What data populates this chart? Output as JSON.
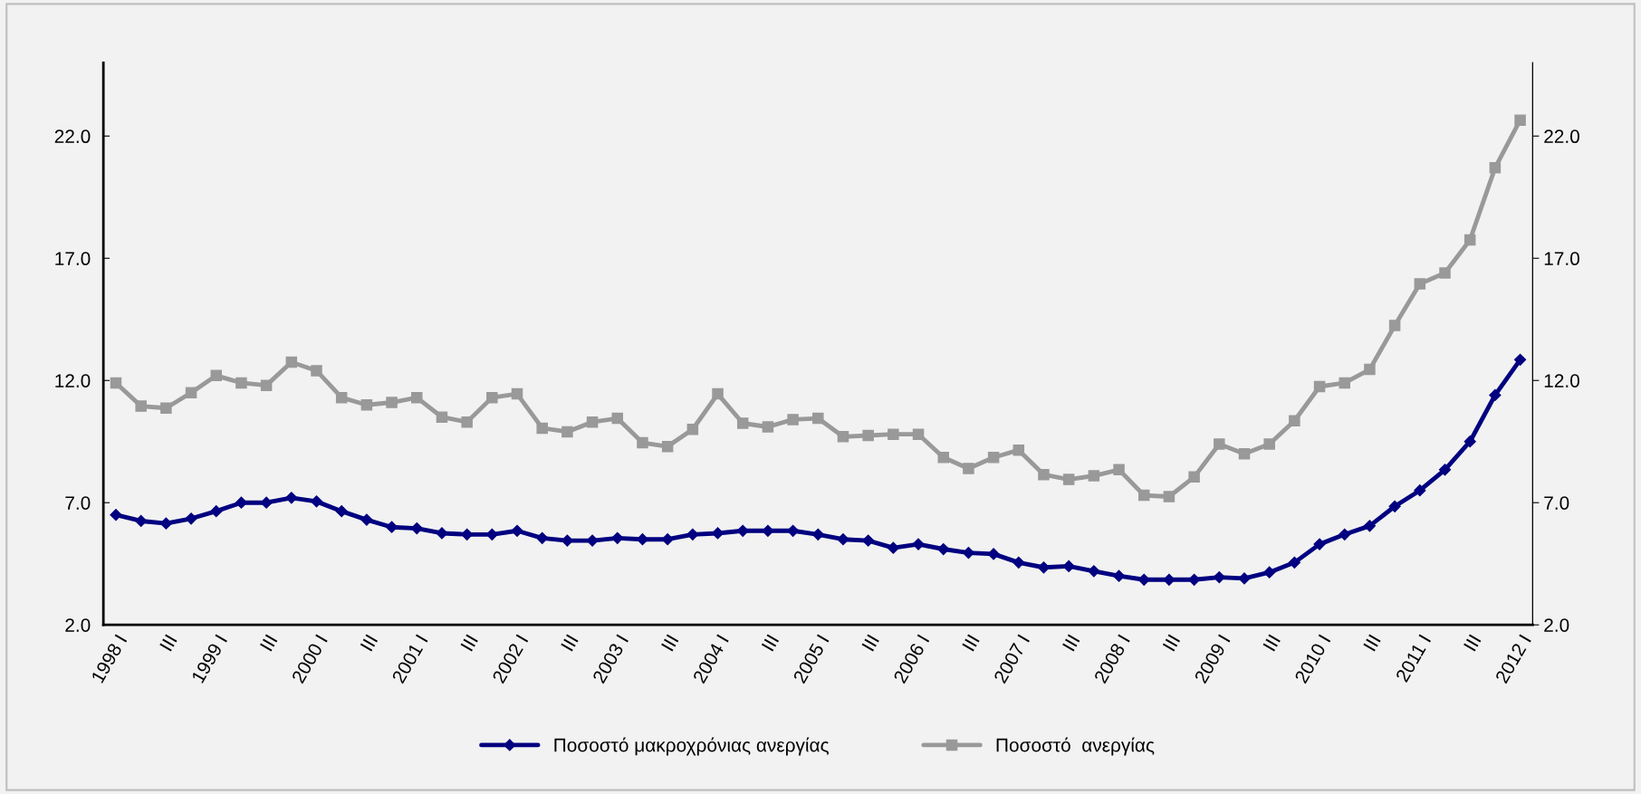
{
  "chart_data": {
    "type": "line",
    "categories": [
      "1998 I",
      null,
      "III",
      null,
      "1999 I",
      null,
      "III",
      null,
      "2000 I",
      null,
      "III",
      null,
      "2001 I",
      null,
      "III",
      null,
      "2002 I",
      null,
      "III",
      null,
      "2003 I",
      null,
      "III",
      null,
      "2004 I",
      null,
      "III",
      null,
      "2005 I",
      null,
      "III",
      null,
      "2006 I",
      null,
      "III",
      null,
      "2007 I",
      null,
      "III",
      null,
      "2008 I",
      null,
      "III",
      null,
      "2009 I",
      null,
      "III",
      null,
      "2010 I",
      null,
      "III",
      null,
      "2011 I",
      null,
      "III",
      null,
      "2012 I"
    ],
    "series": [
      {
        "name": "Ποσοστό μακροχρόνιας ανεργίας",
        "color": "#000080",
        "marker": "diamond",
        "values": [
          6.5,
          6.25,
          6.15,
          6.35,
          6.65,
          7.0,
          7.0,
          7.2,
          7.05,
          6.65,
          6.3,
          6.0,
          5.95,
          5.75,
          5.7,
          5.7,
          5.85,
          5.55,
          5.45,
          5.45,
          5.55,
          5.5,
          5.5,
          5.7,
          5.75,
          5.85,
          5.85,
          5.85,
          5.7,
          5.5,
          5.45,
          5.15,
          5.3,
          5.1,
          4.95,
          4.9,
          4.55,
          4.35,
          4.4,
          4.2,
          4.0,
          3.85,
          3.85,
          3.85,
          3.95,
          3.9,
          4.15,
          4.55,
          5.3,
          5.7,
          6.05,
          6.85,
          7.5,
          8.35,
          9.5,
          11.4,
          12.85
        ]
      },
      {
        "name": "Ποσοστό  ανεργίας",
        "color": "#999999",
        "marker": "square",
        "values": [
          11.9,
          10.95,
          10.87,
          11.5,
          12.2,
          11.9,
          11.8,
          12.75,
          12.4,
          11.3,
          11.0,
          11.1,
          11.3,
          10.5,
          10.3,
          11.3,
          11.45,
          10.05,
          9.9,
          10.3,
          10.45,
          9.45,
          9.3,
          10.0,
          11.45,
          10.25,
          10.1,
          10.4,
          10.45,
          9.7,
          9.75,
          9.8,
          9.8,
          8.85,
          8.4,
          8.85,
          9.15,
          8.15,
          7.95,
          8.1,
          8.35,
          7.3,
          7.25,
          8.05,
          9.4,
          9.0,
          9.4,
          10.35,
          11.75,
          11.9,
          12.45,
          14.25,
          15.95,
          16.4,
          17.75,
          20.7,
          22.65
        ]
      }
    ],
    "ylim": [
      2,
      25
    ],
    "yticks": [
      {
        "value": 2,
        "label": "2.0"
      },
      {
        "value": 7,
        "label": "7.0"
      },
      {
        "value": 12,
        "label": "12.0"
      },
      {
        "value": 17,
        "label": "17.0"
      },
      {
        "value": 22,
        "label": "22.0"
      }
    ],
    "y2lim": [
      2,
      25
    ],
    "y2ticks": [
      {
        "value": 2,
        "label": "2.0"
      },
      {
        "value": 7,
        "label": "7.0"
      },
      {
        "value": 12,
        "label": "12.0"
      },
      {
        "value": 17,
        "label": "17.0"
      },
      {
        "value": 22,
        "label": "22.0"
      }
    ],
    "grid": false,
    "legend": "bottom",
    "line_style": "solid"
  }
}
